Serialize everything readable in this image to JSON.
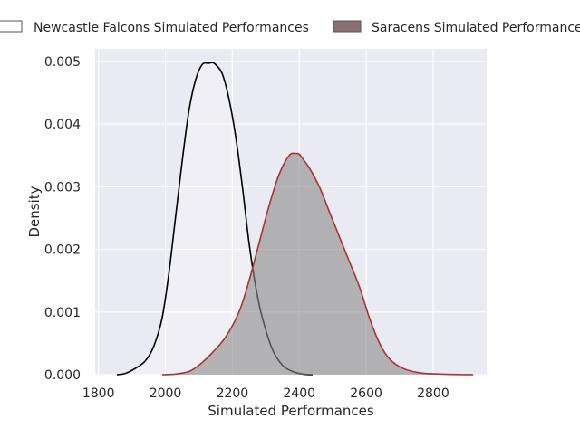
{
  "chart_data": {
    "type": "area",
    "xlabel": "Simulated Performances",
    "ylabel": "Density",
    "xlim": [
      1790,
      2960
    ],
    "ylim": [
      0,
      0.0052
    ],
    "x_ticks": [
      "1800",
      "2000",
      "2200",
      "2400",
      "2600",
      "2800"
    ],
    "x_tick_values": [
      1800,
      2000,
      2200,
      2400,
      2600,
      2800
    ],
    "y_ticks": [
      "0.000",
      "0.001",
      "0.002",
      "0.003",
      "0.004",
      "0.005"
    ],
    "y_tick_values": [
      0,
      0.001,
      0.002,
      0.003,
      0.004,
      0.005
    ],
    "grid": true,
    "legend_position": "top",
    "legend": [
      {
        "label": "Newcastle Falcons Simulated Performances",
        "swatch_fill": "#ffffff",
        "swatch_edge": "#555555"
      },
      {
        "label": "Saracens Simulated Performances",
        "swatch_fill": "#8a7070",
        "swatch_edge": "#555555"
      }
    ],
    "series": [
      {
        "name": "Newcastle Falcons Simulated Performances",
        "color": "#000000",
        "fill": "#ffffff",
        "fill_opacity": 0.25,
        "x": [
          1855,
          1880,
          1910,
          1940,
          1965,
          1990,
          2010,
          2030,
          2050,
          2070,
          2090,
          2110,
          2130,
          2140,
          2150,
          2170,
          2190,
          2210,
          2230,
          2250,
          2270,
          2290,
          2320,
          2350,
          2380,
          2410,
          2440
        ],
        "y": [
          0,
          2e-05,
          0.0001,
          0.00022,
          0.00045,
          0.0009,
          0.0016,
          0.0025,
          0.0034,
          0.0042,
          0.0047,
          0.00495,
          0.00497,
          0.00498,
          0.00495,
          0.0048,
          0.0044,
          0.0038,
          0.003,
          0.0021,
          0.0014,
          0.0009,
          0.0004,
          0.00015,
          5e-05,
          1e-05,
          0
        ]
      },
      {
        "name": "Saracens Simulated Performances",
        "color": "#a83434",
        "fill": "#8a8a8a",
        "fill_opacity": 0.6,
        "x": [
          1990,
          2030,
          2070,
          2100,
          2140,
          2180,
          2220,
          2250,
          2280,
          2310,
          2340,
          2370,
          2390,
          2400,
          2410,
          2430,
          2460,
          2490,
          2520,
          2550,
          2580,
          2610,
          2640,
          2670,
          2710,
          2760,
          2820,
          2880,
          2920
        ],
        "y": [
          0,
          1e-05,
          5e-05,
          0.00015,
          0.00035,
          0.0006,
          0.001,
          0.0015,
          0.0021,
          0.0027,
          0.0032,
          0.0035,
          0.00353,
          0.00352,
          0.00345,
          0.0033,
          0.003,
          0.0026,
          0.0022,
          0.0018,
          0.0014,
          0.0009,
          0.0005,
          0.00025,
          0.0001,
          3e-05,
          1e-05,
          2e-06,
          0
        ]
      }
    ]
  }
}
